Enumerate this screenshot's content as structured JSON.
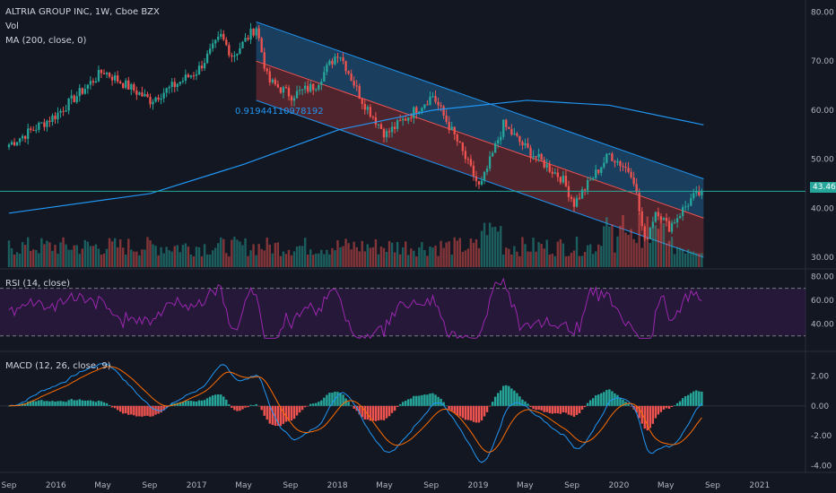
{
  "header": {
    "symbol_line": "ALTRIA GROUP INC, 1W, Cboe BZX",
    "vol_label": "Vol",
    "ma_label": "MA (200, close, 0)"
  },
  "rsi_label": "RSI (14, close)",
  "macd_label": "MACD (12, 26, close, 9)",
  "channel_label": "0.91944110978192",
  "last_price": "43.46",
  "colors": {
    "bg": "#131722",
    "up": "#26a69a",
    "down": "#ef5350",
    "channel_upper_fill": "#1f5f8f",
    "channel_lower_fill": "#7a2d33",
    "ma": "#2196f3",
    "rsi": "#9c27b0",
    "macd": "#2196f3",
    "signal": "#ff6d00"
  },
  "chart_data": [
    {
      "type": "line",
      "name": "price",
      "title": "ALTRIA GROUP INC, 1W, Cboe BZX",
      "x_ticks": [
        "Sep",
        "2016",
        "May",
        "Sep",
        "2017",
        "May",
        "Sep",
        "2018",
        "May",
        "Sep",
        "2019",
        "May",
        "Sep",
        "2020",
        "May",
        "Sep",
        "2021"
      ],
      "y_ticks": [
        "80.00",
        "70.00",
        "60.00",
        "50.00",
        "40.00",
        "30.00"
      ],
      "ylim": [
        28,
        81
      ],
      "close_keypoints": [
        {
          "x": "2015-09",
          "y": 53
        },
        {
          "x": "2016-01",
          "y": 59
        },
        {
          "x": "2016-05",
          "y": 68
        },
        {
          "x": "2016-09",
          "y": 62
        },
        {
          "x": "2017-01",
          "y": 68
        },
        {
          "x": "2017-03",
          "y": 75
        },
        {
          "x": "2017-04",
          "y": 71
        },
        {
          "x": "2017-06",
          "y": 77
        },
        {
          "x": "2017-07",
          "y": 66
        },
        {
          "x": "2017-09",
          "y": 63
        },
        {
          "x": "2017-11",
          "y": 65
        },
        {
          "x": "2018-01",
          "y": 72
        },
        {
          "x": "2018-03",
          "y": 62
        },
        {
          "x": "2018-05",
          "y": 55
        },
        {
          "x": "2018-09",
          "y": 63
        },
        {
          "x": "2018-11",
          "y": 54
        },
        {
          "x": "2019-01",
          "y": 44
        },
        {
          "x": "2019-03",
          "y": 57
        },
        {
          "x": "2019-05",
          "y": 52
        },
        {
          "x": "2019-08",
          "y": 46
        },
        {
          "x": "2019-09",
          "y": 41
        },
        {
          "x": "2019-12",
          "y": 51
        },
        {
          "x": "2020-02",
          "y": 47
        },
        {
          "x": "2020-03",
          "y": 33
        },
        {
          "x": "2020-04",
          "y": 40
        },
        {
          "x": "2020-05",
          "y": 36
        },
        {
          "x": "2020-07",
          "y": 42
        },
        {
          "x": "2020-08",
          "y": 43.46
        }
      ],
      "ma200": [
        {
          "x": "2015-09",
          "y": 39
        },
        {
          "x": "2016-09",
          "y": 43
        },
        {
          "x": "2017-05",
          "y": 49
        },
        {
          "x": "2018-01",
          "y": 56
        },
        {
          "x": "2018-09",
          "y": 60
        },
        {
          "x": "2019-05",
          "y": 62
        },
        {
          "x": "2019-12",
          "y": 61
        },
        {
          "x": "2020-08",
          "y": 57
        }
      ],
      "regression_channel": {
        "upper": [
          {
            "x": "2017-06",
            "y": 78
          },
          {
            "x": "2020-08",
            "y": 46
          }
        ],
        "middle": [
          {
            "x": "2017-06",
            "y": 70
          },
          {
            "x": "2020-08",
            "y": 38
          }
        ],
        "lower": [
          {
            "x": "2017-06",
            "y": 62
          },
          {
            "x": "2020-08",
            "y": 30
          }
        ],
        "label": "0.91944110978192"
      },
      "last_value": 43.46
    },
    {
      "type": "line",
      "name": "RSI (14, close)",
      "y_ticks": [
        "80.00",
        "60.00",
        "40.00"
      ],
      "bands": [
        70,
        30
      ],
      "ylim": [
        20,
        84
      ]
    },
    {
      "type": "line",
      "name": "MACD (12, 26, close, 9)",
      "y_ticks": [
        "2.00",
        "0.00",
        "-2.00",
        "-4.00"
      ],
      "ylim": [
        -4.2,
        3.4
      ]
    }
  ]
}
